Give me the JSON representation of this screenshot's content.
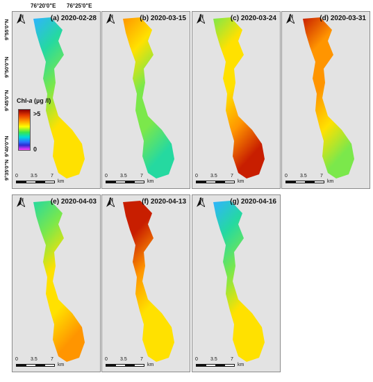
{
  "top_axis": {
    "lon_labels": [
      "76°20'0\"E",
      "76°25'0\"E"
    ]
  },
  "left_axis": {
    "lat_labels": [
      "9°55'0\"N",
      "9°50'0\"N",
      "9°45'0\"N",
      "9°40'0\"N",
      "9°35'0\"N"
    ]
  },
  "legend": {
    "title_prefix": "Chl-",
    "title_var": "a",
    "title_unit": " (µg /l)",
    "max_label": ">5",
    "min_label": "0"
  },
  "north_arrow": {
    "label": "N",
    "icon": "north-arrow-icon"
  },
  "scale_bar": {
    "ticks": [
      "0",
      "3.5",
      "7"
    ],
    "unit": "km"
  },
  "panels": [
    {
      "title": "(a) 2020-02-28",
      "level": 0.3
    },
    {
      "title": "(b) 2020-03-15",
      "level": 0.4
    },
    {
      "title": "(c) 2020-03-24",
      "level": 0.55
    },
    {
      "title": "(d) 2020-03-31",
      "level": 0.6
    },
    {
      "title": "(e) 2020-04-03",
      "level": 0.45
    },
    {
      "title": "(f) 2020-04-13",
      "level": 0.65
    },
    {
      "title": "(g) 2020-04-16",
      "level": 0.3
    }
  ]
}
